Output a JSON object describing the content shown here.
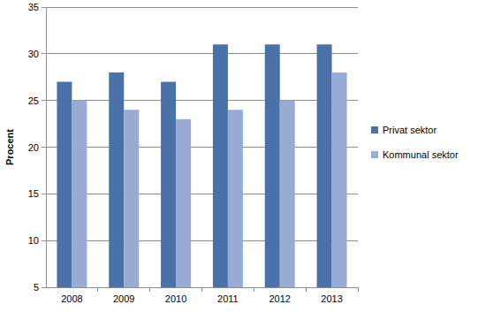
{
  "chart_data": {
    "type": "bar",
    "y_label": "Procent",
    "categories": [
      "2008",
      "2009",
      "2010",
      "2011",
      "2012",
      "2013"
    ],
    "series": [
      {
        "name": "Privat sektor",
        "color": "#4a72a8",
        "values": [
          27,
          28,
          27,
          31,
          31,
          31
        ]
      },
      {
        "name": "Kommunal sektor",
        "color": "#98acd3",
        "values": [
          25,
          24,
          23,
          24,
          25,
          28
        ]
      }
    ],
    "ylim": [
      5,
      35
    ],
    "yticks": [
      5,
      10,
      15,
      20,
      25,
      30,
      35
    ],
    "grid": true,
    "legend": "right"
  }
}
